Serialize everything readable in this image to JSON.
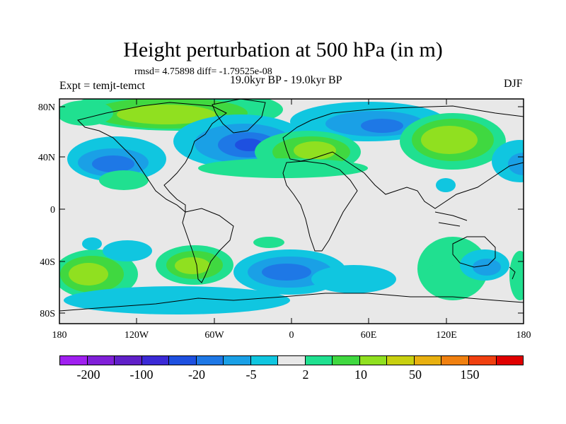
{
  "title": "Height perturbation at 500 hPa (in m)",
  "stats_line": "rmsd= 4.75898 diff= -1.79525e-08",
  "period_line": "19.0kyr BP - 19.0kyr BP",
  "expt_line": "Expt = temjt-temct",
  "season": "DJF",
  "map": {
    "lat_labels": [
      "80N",
      "40N",
      "0",
      "40S",
      "80S"
    ],
    "lon_labels": [
      "180",
      "120W",
      "60W",
      "0",
      "60E",
      "120E",
      "180"
    ]
  },
  "colorbar": {
    "colors": [
      "#a020f0",
      "#8020d8",
      "#6020c8",
      "#3b2ad6",
      "#1e50e0",
      "#1e78e6",
      "#1aa0e6",
      "#10c6e0",
      "#e8e8e8",
      "#20e090",
      "#40d840",
      "#90e020",
      "#c8d010",
      "#e8b010",
      "#f08010",
      "#f04010",
      "#e00000"
    ],
    "labels": [
      "-200",
      "-100",
      "-20",
      "-5",
      "2",
      "10",
      "50",
      "150"
    ]
  }
}
